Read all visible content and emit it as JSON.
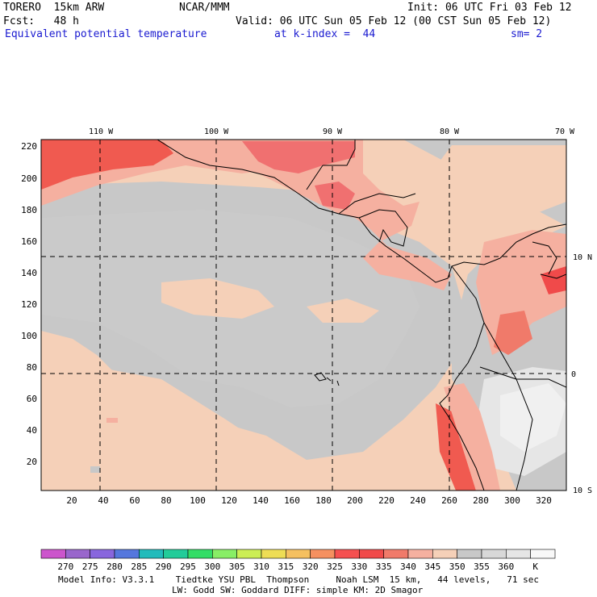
{
  "header": {
    "model": "TORERO  15km ARW",
    "center": "NCAR/MMM",
    "init": "Init: 06 UTC Fri 03 Feb 12",
    "fcst": "Fcst:   48 h",
    "valid": "Valid: 06 UTC Sun 05 Feb 12 (00 CST Sun 05 Feb 12)",
    "field": "Equivalent potential temperature",
    "level": "at k-index =  44",
    "smooth": "sm= 2"
  },
  "map": {
    "lon_labels": [
      "110 W",
      "100 W",
      "90 W",
      "80 W",
      "70 W"
    ],
    "lat_labels": [
      "10 N",
      "0",
      "10 S"
    ],
    "y_ticks": [
      "220",
      "200",
      "180",
      "160",
      "140",
      "120",
      "100",
      "80",
      "60",
      "40",
      "20"
    ],
    "x_ticks": [
      "20",
      "40",
      "60",
      "80",
      "100",
      "120",
      "140",
      "160",
      "180",
      "200",
      "220",
      "240",
      "260",
      "280",
      "300",
      "320"
    ]
  },
  "colorbar": {
    "colors": [
      "#cc55cc",
      "#9966cc",
      "#8866dd",
      "#5577dd",
      "#22bbbb",
      "#22cc99",
      "#33dd66",
      "#88ee66",
      "#ccee55",
      "#eedd55",
      "#f5c060",
      "#f59060",
      "#f55050",
      "#f04a4a",
      "#f07a6a",
      "#f5b0a0",
      "#f5d0b8",
      "#c8c8c8",
      "#d8d8d8",
      "#e6e6e6",
      "#f8f8f8"
    ],
    "labels": [
      "270",
      "275",
      "280",
      "285",
      "290",
      "295",
      "300",
      "305",
      "310",
      "315",
      "320",
      "325",
      "330",
      "335",
      "340",
      "345",
      "350",
      "355",
      "360",
      "K"
    ]
  },
  "footer": {
    "line1": "Model Info: V3.3.1    Tiedtke YSU PBL  Thompson     Noah LSM  15 km,   44 levels,   71 sec",
    "line2": "LW: Godd SW: Goddard DIFF: simple KM: 2D Smagor"
  }
}
